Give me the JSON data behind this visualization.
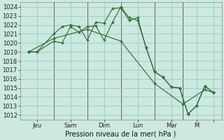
{
  "bg_color": "#cce8e0",
  "grid_color": "#99ccbb",
  "line_color": "#2d6a2d",
  "xlabel": "Pression niveau de la mer( hPa )",
  "ylim": [
    1011.5,
    1024.5
  ],
  "yticks": [
    1012,
    1013,
    1014,
    1015,
    1016,
    1017,
    1018,
    1019,
    1020,
    1021,
    1022,
    1023,
    1024
  ],
  "xtick_positions": [
    0.5,
    2.5,
    4.5,
    6.5,
    8.5,
    10.0,
    11.0
  ],
  "xtick_labels": [
    "Jeu",
    "Sam",
    "Dim",
    "Lun",
    "Mar",
    "M",
    ""
  ],
  "vlines": [
    1.5,
    3.5,
    5.5,
    7.5,
    9.2
  ],
  "xlim": [
    -0.5,
    11.5
  ],
  "series1_x": [
    0.0,
    0.5,
    1.5,
    2.0,
    2.5,
    3.0,
    3.5,
    4.0,
    4.5,
    5.0,
    5.5,
    6.0,
    6.5,
    7.0,
    7.5,
    8.0,
    8.5,
    9.0,
    9.5,
    10.0,
    10.5,
    11.0
  ],
  "series1_y": [
    1019.0,
    1019.0,
    1021.0,
    1021.8,
    1022.0,
    1021.8,
    1020.3,
    1022.3,
    1022.2,
    1023.8,
    1023.9,
    1022.5,
    1022.8,
    1019.5,
    1016.8,
    1016.2,
    1015.1,
    1015.0,
    1012.1,
    1013.0,
    1015.2,
    1014.5
  ],
  "series2_x": [
    0.0,
    0.5,
    1.5,
    2.0,
    2.5,
    3.0,
    3.5,
    4.0,
    4.5,
    5.0,
    5.5,
    6.0,
    6.5,
    7.0,
    7.5,
    8.0,
    8.5,
    9.0,
    9.5,
    10.0,
    10.5,
    11.0
  ],
  "series2_y": [
    1019.0,
    1019.0,
    1020.2,
    1020.0,
    1021.8,
    1021.2,
    1021.8,
    1021.9,
    1020.3,
    1022.3,
    1024.0,
    1022.8,
    1022.5,
    1019.5,
    1016.8,
    1016.2,
    1015.1,
    1015.0,
    1012.1,
    1013.0,
    1015.2,
    1014.5
  ],
  "series3_x": [
    0.0,
    1.5,
    3.5,
    5.5,
    7.5,
    9.2,
    10.5,
    11.0
  ],
  "series3_y": [
    1019.0,
    1020.5,
    1021.5,
    1020.2,
    1015.5,
    1013.2,
    1014.8,
    1014.5
  ]
}
